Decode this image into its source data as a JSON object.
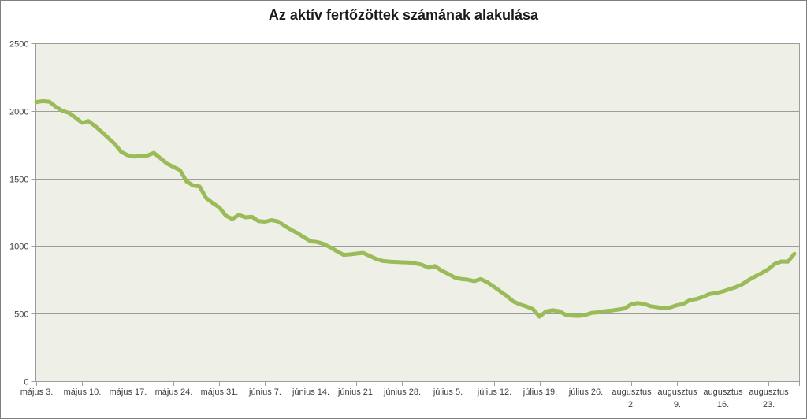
{
  "chart_data": {
    "type": "line",
    "title": "Az aktív fertőzöttek számának alakulása",
    "legend": "none",
    "grid": "horizontal",
    "colors": {
      "line": "#9BBB59",
      "plot_background": "#EEF0E8",
      "gridline": "#9D9D9D",
      "axis_text": "#3F3F3F",
      "title_text": "#1A1A1A",
      "frame_border": "#7F7F7F"
    },
    "y_axis": {
      "min": 0,
      "max": 2500,
      "tick_values": [
        0,
        500,
        1000,
        1500,
        2000,
        2500
      ],
      "tick_labels": [
        "0",
        "500",
        "1000",
        "1500",
        "2000",
        "2500"
      ]
    },
    "x_axis": {
      "tick_labels": [
        "május 3.",
        "május 10.",
        "május 17.",
        "május 24.",
        "május 31.",
        "június 7.",
        "június 14.",
        "június 21.",
        "június 28.",
        "július 5.",
        "július 12.",
        "július 19.",
        "július 26.",
        "augusztus 2.",
        "augusztus 9.",
        "augusztus 16.",
        "augusztus 23."
      ],
      "tick_interval_days": 7
    },
    "series": [
      {
        "name": "aktív fertőzöttek",
        "frequency": "daily",
        "months": [
          {
            "month": "május",
            "first_day": 3,
            "values": [
              2065,
              2072,
              2068,
              2030,
              2000,
              1985,
              1950,
              1912,
              1925,
              1888,
              1845,
              1800,
              1756,
              1697,
              1672,
              1662,
              1666,
              1670,
              1690,
              1650,
              1610,
              1585,
              1562,
              1478,
              1448,
              1440,
              1355,
              1318,
              1286
            ]
          },
          {
            "month": "június",
            "first_day": 1,
            "values": [
              1225,
              1200,
              1230,
              1212,
              1216,
              1185,
              1180,
              1192,
              1182,
              1150,
              1120,
              1095,
              1063,
              1035,
              1030,
              1015,
              990,
              962,
              935,
              938,
              944,
              950,
              928,
              905,
              890,
              885,
              882,
              880,
              878,
              872
            ]
          },
          {
            "month": "július",
            "first_day": 1,
            "values": [
              862,
              840,
              852,
              818,
              795,
              768,
              756,
              752,
              740,
              755,
              733,
              700,
              665,
              630,
              590,
              568,
              553,
              533,
              477,
              517,
              525,
              518,
              492,
              485,
              483,
              490,
              505,
              510,
              518,
              523,
              530
            ]
          },
          {
            "month": "augusztus",
            "first_day": 1,
            "values": [
              538,
              568,
              578,
              572,
              555,
              548,
              540,
              546,
              562,
              571,
              600,
              608,
              625,
              645,
              652,
              663,
              680,
              695,
              717,
              748,
              775,
              800,
              828,
              868,
              886,
              884,
              943
            ]
          }
        ]
      }
    ]
  }
}
